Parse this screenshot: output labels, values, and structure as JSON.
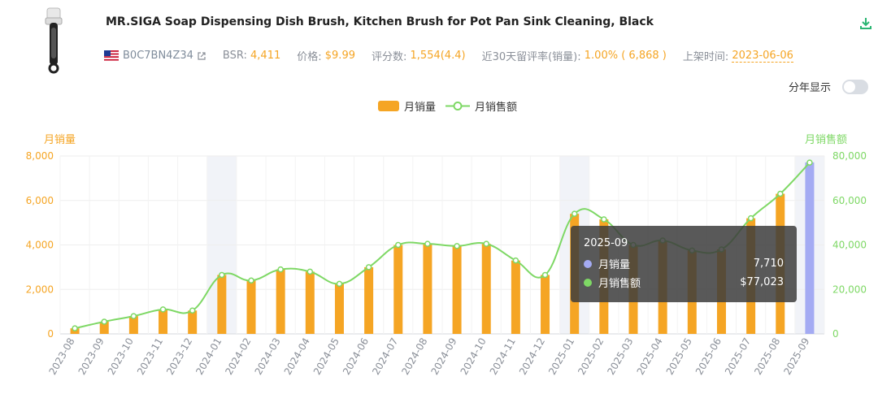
{
  "product": {
    "title": "MR.SIGA Soap Dispensing Dish Brush, Kitchen Brush for Pot Pan Sink Cleaning, Black",
    "asin": "B0C7BN4Z34",
    "bsr_label": "BSR:",
    "bsr_value": "4,411",
    "price_label": "价格:",
    "price_value": "$9.99",
    "rating_label": "评分数:",
    "rating_value": "1,554(4.4)",
    "retention_label": "近30天留评率(销量):",
    "retention_value": "1.00% ( 6,868 )",
    "listed_label": "上架时间:",
    "listed_value": "2023-06-06"
  },
  "controls": {
    "toggle_label": "分年显示",
    "toggle_on": false
  },
  "colors": {
    "bar": "#f5a524",
    "bar_highlight": "#a4abf3",
    "line": "#7ed865",
    "left_axis": "#f5a524",
    "right_axis": "#7ed865"
  },
  "chart_data": {
    "type": "bar",
    "categories": [
      "2023-08",
      "2023-09",
      "2023-10",
      "2023-11",
      "2023-12",
      "2024-01",
      "2024-02",
      "2024-03",
      "2024-04",
      "2024-05",
      "2024-06",
      "2024-07",
      "2024-08",
      "2024-09",
      "2024-10",
      "2024-11",
      "2024-12",
      "2025-01",
      "2025-02",
      "2025-03",
      "2025-04",
      "2025-05",
      "2025-06",
      "2025-07",
      "2025-08",
      "2025-09"
    ],
    "series": [
      {
        "name": "月销量",
        "type": "bar",
        "axis": "left",
        "values": [
          250,
          550,
          800,
          1100,
          1050,
          2650,
          2400,
          2900,
          2800,
          2250,
          3000,
          4000,
          4050,
          3950,
          4050,
          3300,
          2650,
          5400,
          5150,
          4000,
          4200,
          3750,
          3800,
          5200,
          6300,
          7710
        ]
      },
      {
        "name": "月销售额",
        "type": "line",
        "axis": "right",
        "values": [
          2500,
          5500,
          8000,
          11000,
          10500,
          26500,
          24000,
          29000,
          28000,
          22500,
          30000,
          40000,
          40500,
          39500,
          40500,
          33000,
          26500,
          54000,
          51500,
          40000,
          42000,
          37500,
          38000,
          52000,
          63000,
          77023
        ]
      }
    ],
    "ylabel_left": "月销量",
    "ylabel_right": "月销售额",
    "ylim_left": [
      0,
      8000
    ],
    "ylim_right": [
      0,
      80000
    ],
    "yticks_left": [
      "0",
      "2,000",
      "4,000",
      "6,000",
      "8,000"
    ],
    "yticks_right": [
      "0",
      "20,000",
      "40,000",
      "60,000",
      "80,000"
    ],
    "highlight_categories": [
      "2024-01",
      "2025-01",
      "2025-09"
    ],
    "legend_position": "top-center",
    "tooltip": {
      "title": "2025-09",
      "rows": [
        {
          "label": "月销量",
          "value": "7,710"
        },
        {
          "label": "月销售额",
          "value": "$77,023"
        }
      ]
    }
  }
}
